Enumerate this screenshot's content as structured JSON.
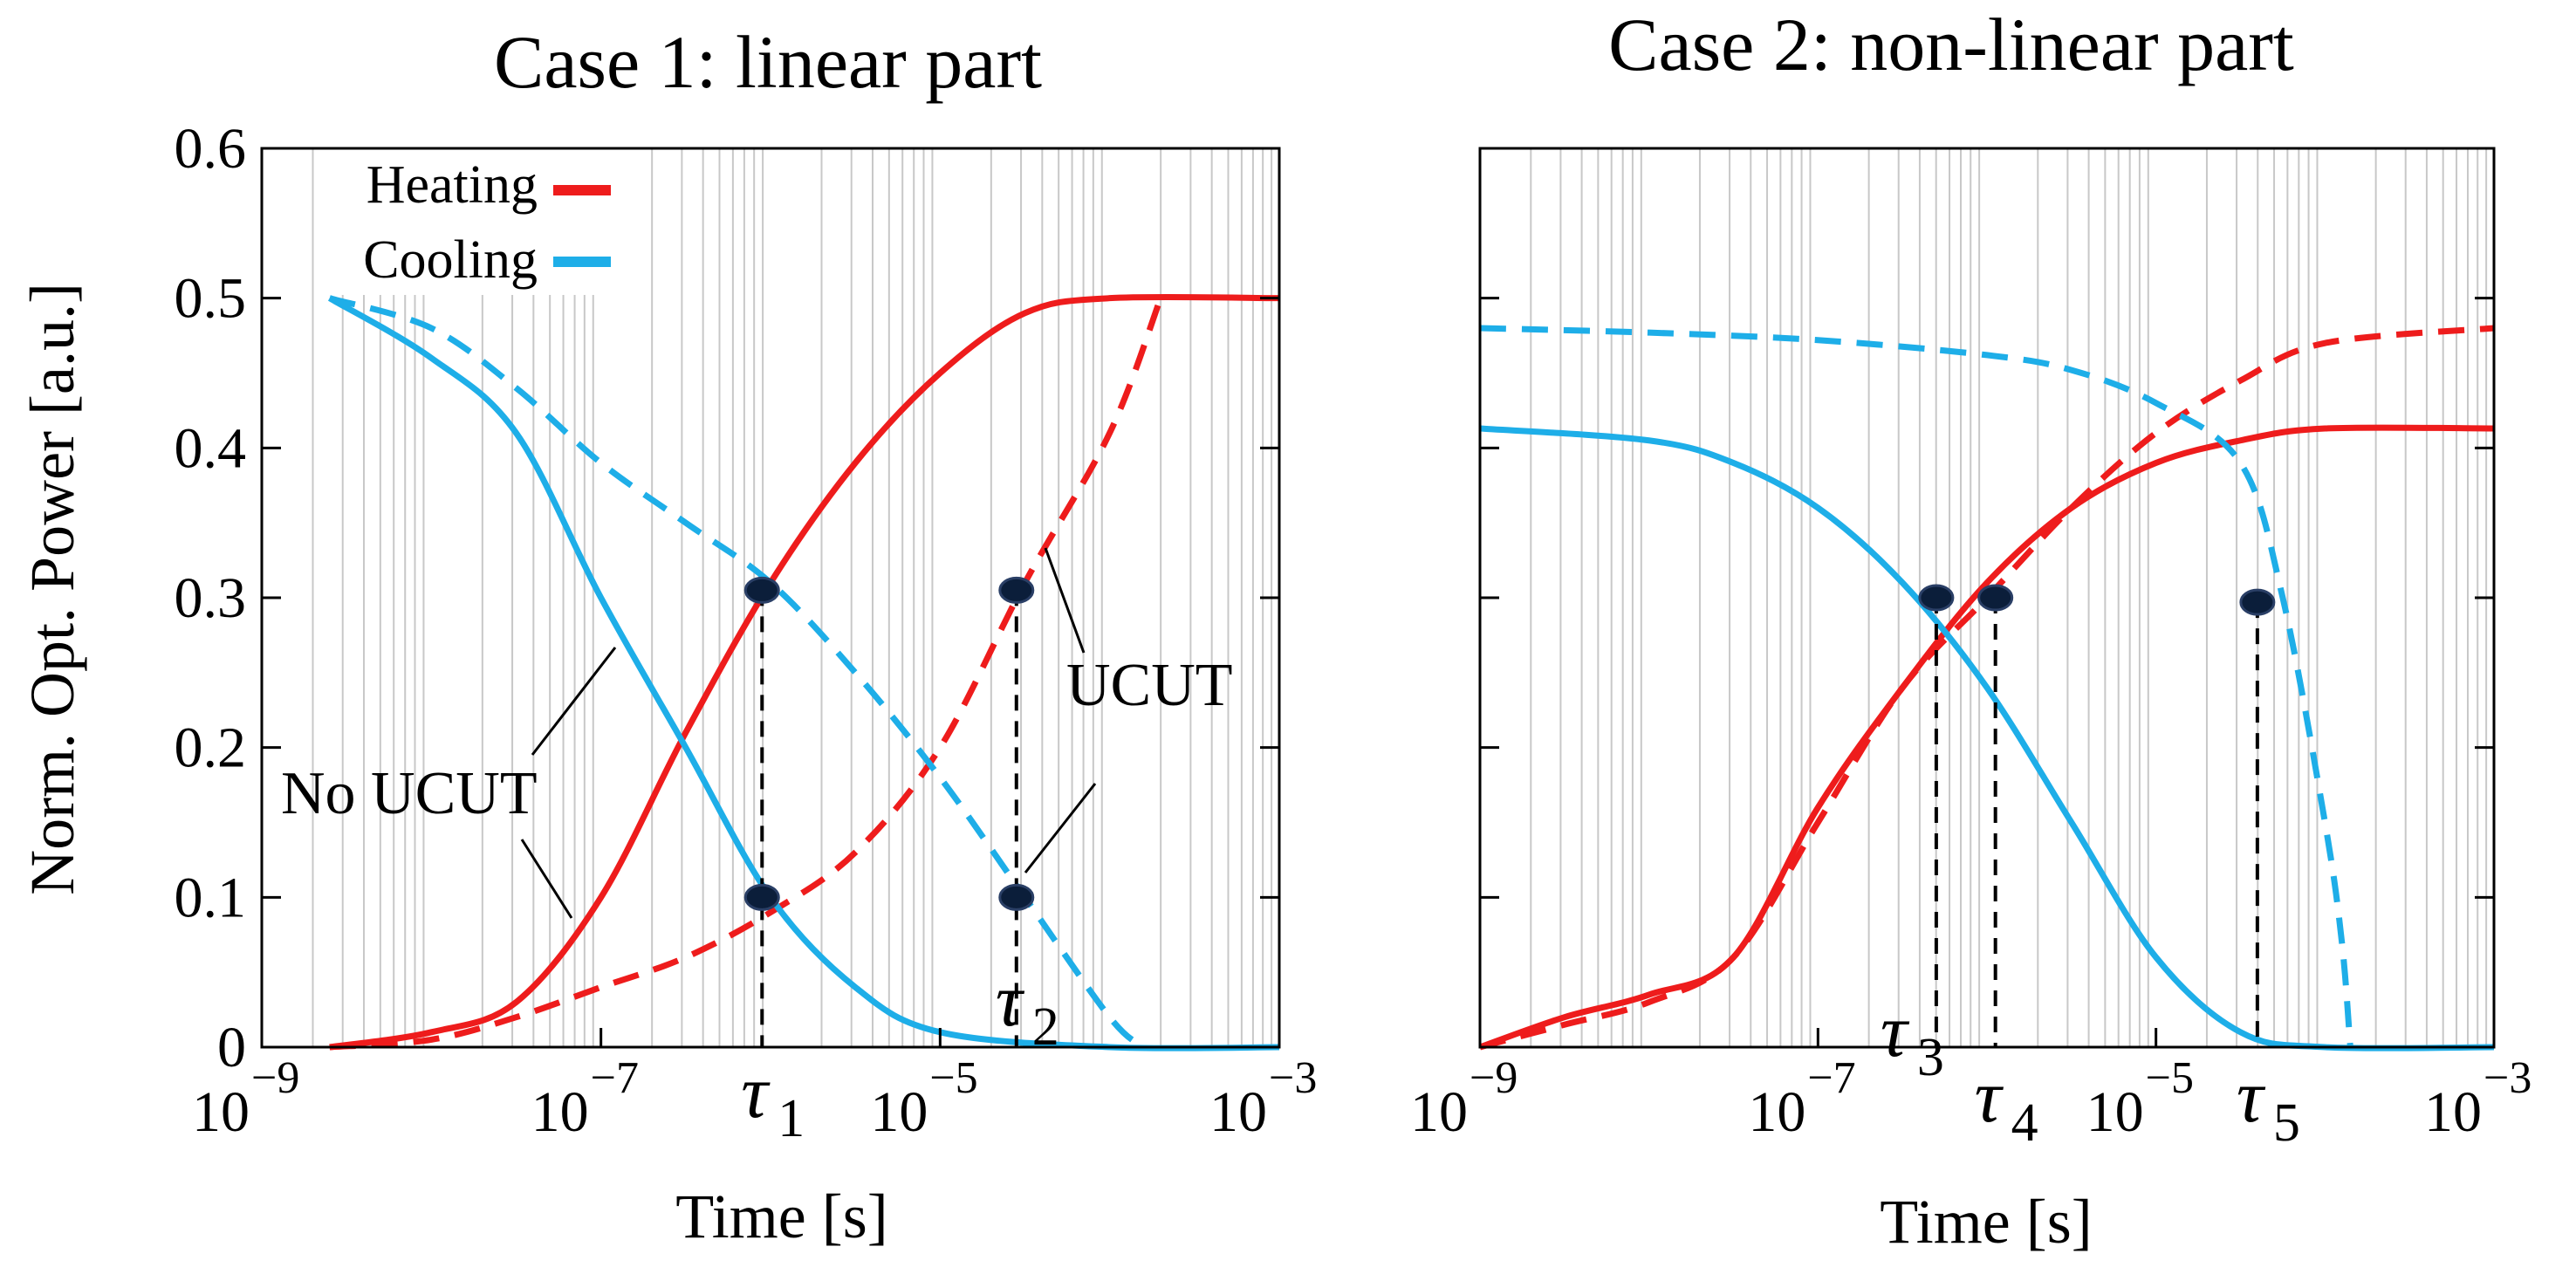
{
  "colors": {
    "heating": "#ee1c1c",
    "cooling": "#1eaee8",
    "grid": "#c8c8c8",
    "marker": "#0b1e3a"
  },
  "shared": {
    "ylabel": "Norm. Opt. Power [a.u.]",
    "xlabel": "Time [s]",
    "legend": [
      "Heating",
      "Cooling"
    ],
    "x_tick_labels": [
      {
        "base": "10",
        "exp": "−9"
      },
      {
        "base": "10",
        "exp": "−7"
      },
      {
        "base": "10",
        "exp": "−5"
      },
      {
        "base": "10",
        "exp": "−3"
      }
    ],
    "y_tick_labels": [
      "0",
      "0.1",
      "0.2",
      "0.3",
      "0.4",
      "0.5",
      "0.6"
    ]
  },
  "chart_data": [
    {
      "type": "line",
      "title": "Case 1: linear part",
      "xscale": "log",
      "xlim_log10": [
        -9,
        -3
      ],
      "ylim": [
        0,
        0.6
      ],
      "annotations": [
        "No UCUT",
        "UCUT"
      ],
      "taus": [
        {
          "sym": "τ",
          "sub": "1",
          "log10_t": -6.05
        },
        {
          "sym": "τ",
          "sub": "2",
          "log10_t": -4.55
        }
      ],
      "series": [
        {
          "name": "Heating",
          "style": "solid",
          "points_log10x": [
            [
              -8.6,
              0
            ],
            [
              -8.0,
              0.01
            ],
            [
              -7.5,
              0.03
            ],
            [
              -7.0,
              0.1
            ],
            [
              -6.5,
              0.21
            ],
            [
              -6.0,
              0.31
            ],
            [
              -5.5,
              0.39
            ],
            [
              -5.0,
              0.45
            ],
            [
              -4.5,
              0.49
            ],
            [
              -4.0,
              0.5
            ],
            [
              -3.0,
              0.5
            ]
          ]
        },
        {
          "name": "Heating (UCUT)",
          "style": "dashed",
          "points_log10x": [
            [
              -8.6,
              0
            ],
            [
              -8.0,
              0.005
            ],
            [
              -7.5,
              0.02
            ],
            [
              -7.0,
              0.04
            ],
            [
              -6.5,
              0.06
            ],
            [
              -6.0,
              0.09
            ],
            [
              -5.5,
              0.13
            ],
            [
              -5.0,
              0.2
            ],
            [
              -4.5,
              0.31
            ],
            [
              -4.0,
              0.41
            ],
            [
              -3.7,
              0.5
            ]
          ]
        },
        {
          "name": "Cooling",
          "style": "solid",
          "points_log10x": [
            [
              -8.6,
              0.5
            ],
            [
              -8.0,
              0.46
            ],
            [
              -7.5,
              0.41
            ],
            [
              -7.0,
              0.3
            ],
            [
              -6.5,
              0.2
            ],
            [
              -6.0,
              0.1
            ],
            [
              -5.5,
              0.04
            ],
            [
              -5.0,
              0.01
            ],
            [
              -4.0,
              0
            ],
            [
              -3.0,
              0
            ]
          ]
        },
        {
          "name": "Cooling (UCUT)",
          "style": "dashed",
          "points_log10x": [
            [
              -8.6,
              0.5
            ],
            [
              -8.0,
              0.48
            ],
            [
              -7.5,
              0.44
            ],
            [
              -7.0,
              0.39
            ],
            [
              -6.5,
              0.35
            ],
            [
              -6.0,
              0.31
            ],
            [
              -5.5,
              0.25
            ],
            [
              -5.0,
              0.18
            ],
            [
              -4.5,
              0.1
            ],
            [
              -4.0,
              0.02
            ],
            [
              -3.8,
              0
            ]
          ]
        }
      ],
      "markers": [
        [
          -6.05,
          0.305
        ],
        [
          -6.05,
          0.1
        ],
        [
          -4.55,
          0.305
        ],
        [
          -4.55,
          0.1
        ]
      ]
    },
    {
      "type": "line",
      "title": "Case 2: non-linear part",
      "xscale": "log",
      "xlim_log10": [
        -9,
        -3
      ],
      "ylim": [
        0,
        0.6
      ],
      "annotations": [],
      "taus": [
        {
          "sym": "τ",
          "sub": "3",
          "log10_t": -6.3
        },
        {
          "sym": "τ",
          "sub": "4",
          "log10_t": -5.95
        },
        {
          "sym": "τ",
          "sub": "5",
          "log10_t": -4.4
        }
      ],
      "series": [
        {
          "name": "Heating",
          "style": "solid",
          "points_log10x": [
            [
              -9.0,
              0
            ],
            [
              -8.5,
              0.02
            ],
            [
              -8.0,
              0.035
            ],
            [
              -7.5,
              0.06
            ],
            [
              -7.0,
              0.16
            ],
            [
              -6.5,
              0.24
            ],
            [
              -6.0,
              0.31
            ],
            [
              -5.5,
              0.36
            ],
            [
              -5.0,
              0.39
            ],
            [
              -4.5,
              0.405
            ],
            [
              -4.0,
              0.413
            ],
            [
              -3.0,
              0.413
            ]
          ]
        },
        {
          "name": "Heating (non-linear)",
          "style": "dashed",
          "points_log10x": [
            [
              -9.0,
              0
            ],
            [
              -8.5,
              0.015
            ],
            [
              -8.0,
              0.03
            ],
            [
              -7.5,
              0.06
            ],
            [
              -7.0,
              0.15
            ],
            [
              -6.5,
              0.24
            ],
            [
              -6.0,
              0.3
            ],
            [
              -5.5,
              0.36
            ],
            [
              -5.0,
              0.41
            ],
            [
              -4.5,
              0.445
            ],
            [
              -4.0,
              0.47
            ],
            [
              -3.0,
              0.48
            ]
          ]
        },
        {
          "name": "Cooling",
          "style": "solid",
          "points_log10x": [
            [
              -9.0,
              0.413
            ],
            [
              -8.0,
              0.405
            ],
            [
              -7.5,
              0.39
            ],
            [
              -7.0,
              0.36
            ],
            [
              -6.5,
              0.31
            ],
            [
              -6.0,
              0.24
            ],
            [
              -5.5,
              0.15
            ],
            [
              -5.0,
              0.06
            ],
            [
              -4.5,
              0.01
            ],
            [
              -4.0,
              0
            ],
            [
              -3.0,
              0
            ]
          ]
        },
        {
          "name": "Cooling (non-linear)",
          "style": "dashed",
          "points_log10x": [
            [
              -9.0,
              0.48
            ],
            [
              -8.0,
              0.477
            ],
            [
              -7.0,
              0.472
            ],
            [
              -6.0,
              0.462
            ],
            [
              -5.5,
              0.452
            ],
            [
              -5.0,
              0.43
            ],
            [
              -4.5,
              0.39
            ],
            [
              -4.25,
              0.3
            ],
            [
              -4.0,
              0.15
            ],
            [
              -3.9,
              0.07
            ],
            [
              -3.85,
              0
            ]
          ]
        }
      ],
      "markers": [
        [
          -6.3,
          0.3
        ],
        [
          -5.95,
          0.3
        ],
        [
          -4.4,
          0.297
        ]
      ]
    }
  ]
}
